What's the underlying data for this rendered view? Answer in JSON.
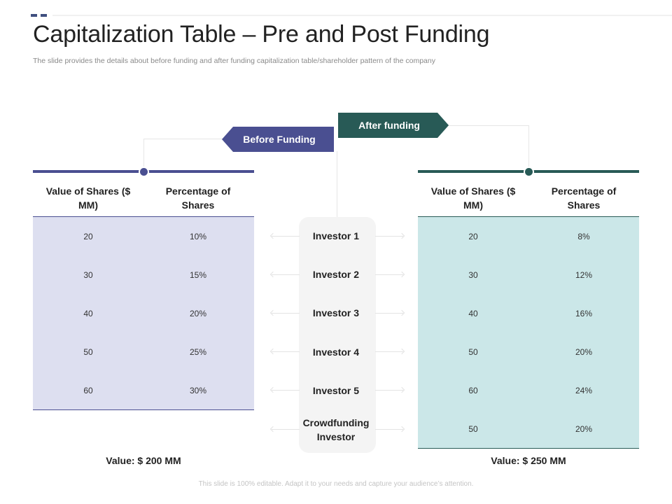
{
  "slide": {
    "title": "Capitalization Table – Pre and Post Funding",
    "subtitle": "The slide provides the details about before funding and after funding capitalization table/shareholder pattern of the company",
    "footer": "This slide is 100% editable. Adapt it to your needs and capture your audience’s attention."
  },
  "banners": {
    "before": "Before Funding",
    "after": "After funding"
  },
  "headers": {
    "value": "Value of Shares ($ MM)",
    "percentage": "Percentage of Shares"
  },
  "investors": [
    "Investor 1",
    "Investor 2",
    "Investor 3",
    "Investor 4",
    "Investor 5",
    "Crowdfunding Investor"
  ],
  "before_table": {
    "rows": [
      {
        "value": "20",
        "percentage": "10%"
      },
      {
        "value": "30",
        "percentage": "15%"
      },
      {
        "value": "40",
        "percentage": "20%"
      },
      {
        "value": "50",
        "percentage": "25%"
      },
      {
        "value": "60",
        "percentage": "30%"
      }
    ],
    "total": "Value: $ 200 MM"
  },
  "after_table": {
    "rows": [
      {
        "value": "20",
        "percentage": "8%"
      },
      {
        "value": "30",
        "percentage": "12%"
      },
      {
        "value": "40",
        "percentage": "16%"
      },
      {
        "value": "50",
        "percentage": "20%"
      },
      {
        "value": "60",
        "percentage": "24%"
      },
      {
        "value": "50",
        "percentage": "20%"
      }
    ],
    "total": "Value: $ 250 MM"
  },
  "colors": {
    "before_accent": "#4a4f91",
    "before_fill": "#dddff0",
    "after_accent": "#285a56",
    "after_fill": "#cbe7e8"
  }
}
